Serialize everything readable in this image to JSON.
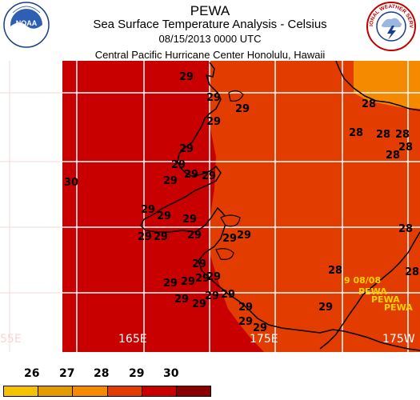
{
  "header": {
    "title": "PEWA",
    "subtitle": "Sea Surface Temperature Analysis - Celsius",
    "datetime": "08/15/2013 0000 UTC",
    "center": "Central Pacific Hurricane Center  Honolulu, Hawaii"
  },
  "logos": {
    "noaa": {
      "text": "NOAA",
      "ring_text": "NATIONAL OCEANIC AND ATMOSPHERIC ADMINISTRATION",
      "ring_text_bottom": "U.S. DEPARTMENT OF COMMERCE"
    },
    "nws": {
      "ring_text": "NATIONAL WEATHER SERVICE"
    }
  },
  "map": {
    "longitude_labels": [
      "165E",
      "175E",
      "175W"
    ],
    "partial_left_label": "55E",
    "isotherm_labels": [
      "29",
      "28",
      "30"
    ],
    "storm_track_text": "9 08/08",
    "storm_label": "PEWA",
    "colors": {
      "gt30": "#c80000",
      "29_30": "#e23c00",
      "28_29": "#f58a00",
      "ocean_border": "#ffffff",
      "track": "#ffd200"
    }
  },
  "legend": {
    "ticks": [
      "26",
      "27",
      "28",
      "29",
      "30"
    ],
    "colors": [
      "#f5c200",
      "#e49b00",
      "#f58a00",
      "#e23c00",
      "#c80000",
      "#8a0000"
    ]
  }
}
